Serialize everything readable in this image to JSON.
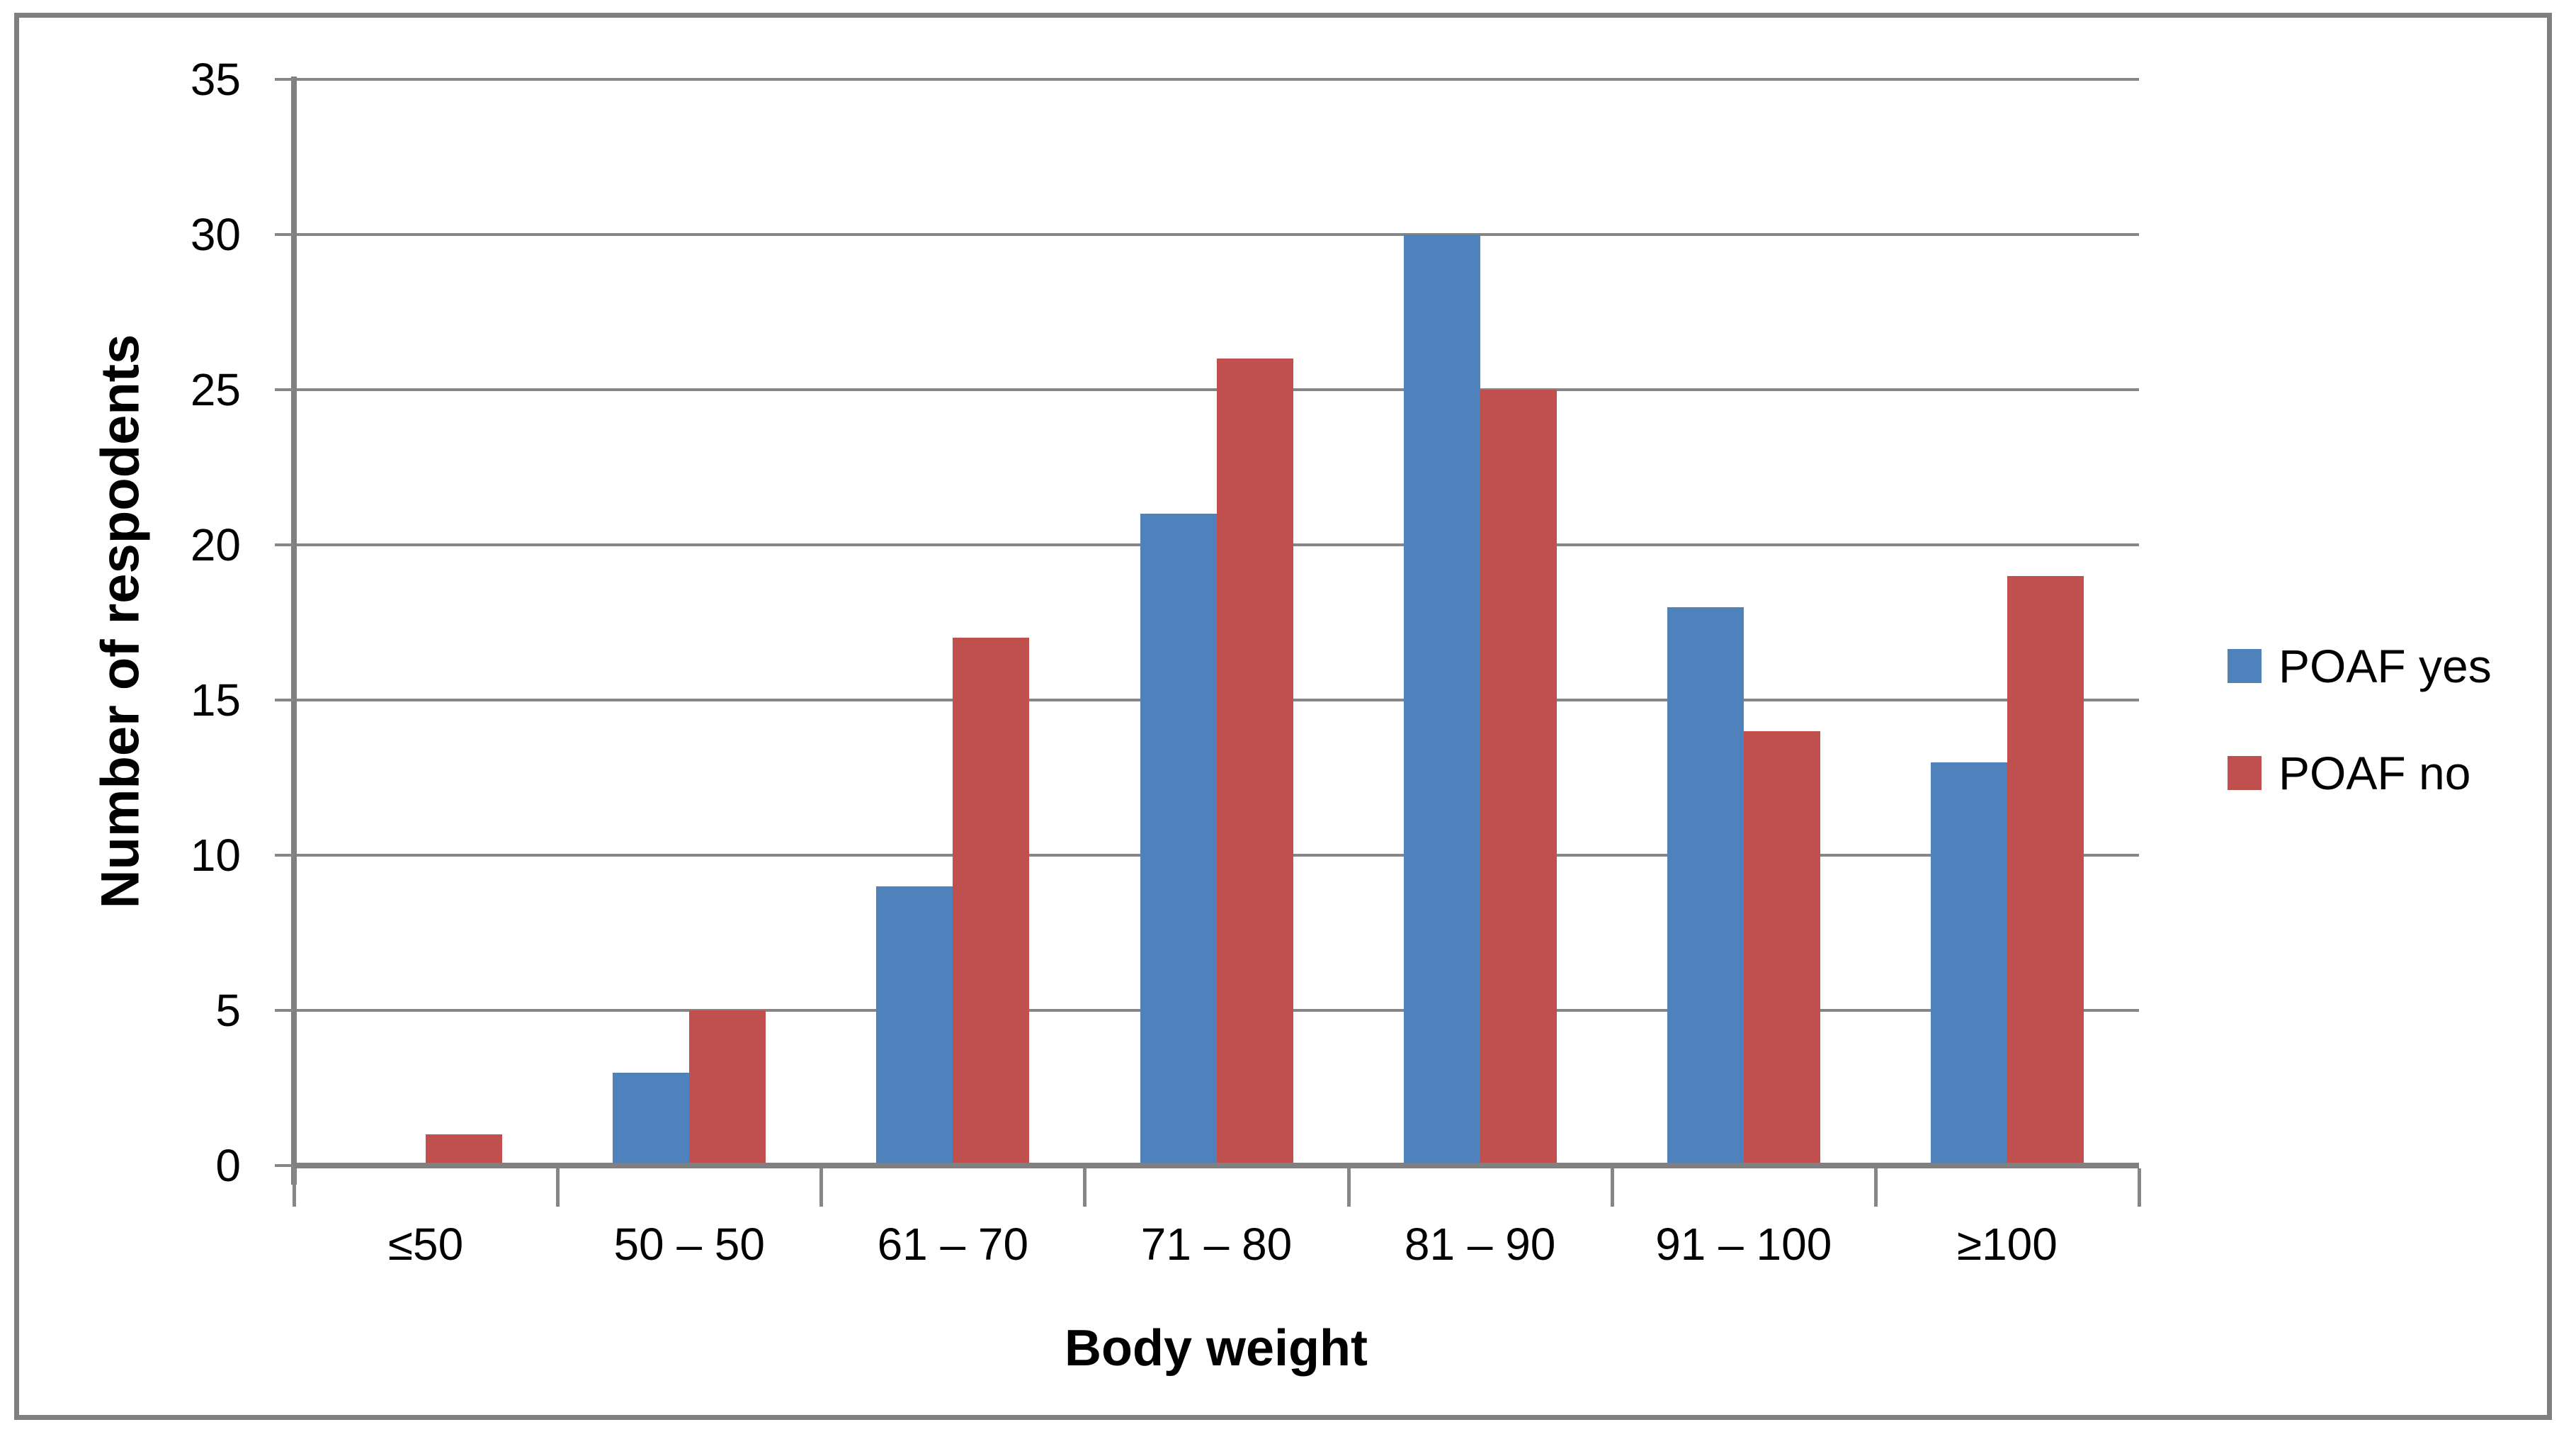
{
  "figure": {
    "background": "#FFFFFF",
    "border_color": "#7F7F7F"
  },
  "chart_data": {
    "type": "bar",
    "categories": [
      "≤50",
      "50 – 50",
      "61 – 70",
      "71 – 80",
      "81 – 90",
      "91 – 100",
      "≥100"
    ],
    "series": [
      {
        "name": "POAF yes",
        "color": "#4F81BD",
        "values": [
          0,
          3,
          9,
          21,
          30,
          18,
          13
        ]
      },
      {
        "name": "POAF no",
        "color": "#C0504D",
        "values": [
          1,
          5,
          17,
          26,
          25,
          14,
          19
        ]
      }
    ],
    "title": "",
    "xlabel": "Body weight",
    "ylabel": "Number of respodents",
    "ylim": [
      0,
      35
    ],
    "yticks": [
      0,
      5,
      10,
      15,
      20,
      25,
      30,
      35
    ],
    "grid": "horizontal",
    "gridline_color": "#868686",
    "axis_color": "#808080",
    "tick_color": "#868686",
    "legend_position": "right"
  }
}
